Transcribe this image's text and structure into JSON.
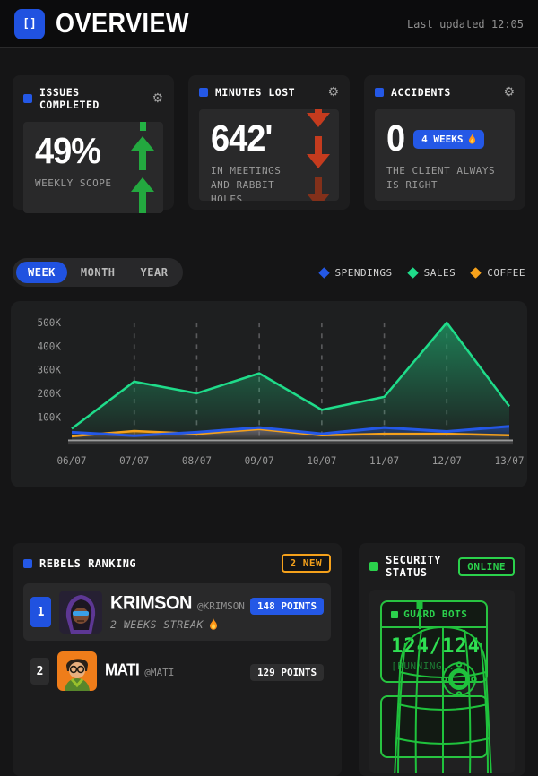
{
  "header": {
    "logo_glyph": "[]",
    "title": "OVERVIEW",
    "last_updated": "Last updated 12:05"
  },
  "stats": [
    {
      "title": "ISSUES COMPLETED",
      "value": "49%",
      "caption": "WEEKLY SCOPE",
      "trend": "up",
      "trend_color": "#23a83f"
    },
    {
      "title": "MINUTES LOST",
      "value": "642'",
      "caption": "IN MEETINGS AND RABBIT HOLES",
      "trend": "down",
      "trend_color": "#c43b1e"
    },
    {
      "title": "ACCIDENTS",
      "value": "0",
      "badge": "4 WEEKS",
      "caption": "THE CLIENT ALWAYS IS RIGHT"
    }
  ],
  "tabs": [
    {
      "label": "WEEK",
      "active": true
    },
    {
      "label": "MONTH",
      "active": false
    },
    {
      "label": "YEAR",
      "active": false
    }
  ],
  "chart_data": {
    "type": "area",
    "title": "",
    "x": [
      "06/07",
      "07/07",
      "08/07",
      "09/07",
      "10/07",
      "11/07",
      "12/07",
      "13/07"
    ],
    "series": [
      {
        "name": "SPENDINGS",
        "color": "#2458e6",
        "values": [
          35000,
          20000,
          35000,
          55000,
          28000,
          55000,
          38000,
          60000
        ]
      },
      {
        "name": "SALES",
        "color": "#1fdc8a",
        "values": [
          50000,
          250000,
          200000,
          285000,
          130000,
          185000,
          500000,
          145000
        ]
      },
      {
        "name": "COFFEE",
        "color": "#f5a11b",
        "values": [
          18000,
          40000,
          28000,
          48000,
          22000,
          28000,
          28000,
          22000
        ]
      }
    ],
    "ylim": [
      0,
      500000
    ],
    "y_ticks": [
      100000,
      200000,
      300000,
      400000,
      500000
    ],
    "grid_lines_at_indices": [
      1,
      2,
      3,
      4,
      5,
      6
    ],
    "grid": "vertical-dashed",
    "legend_position": "top-right"
  },
  "ranking": {
    "title": "REBELS RANKING",
    "badge": "2 NEW",
    "rows": [
      {
        "rank": "1",
        "name": "KRIMSON",
        "handle": "@KRIMSON",
        "points": "148 POINTS",
        "streak": "2 WEEKS STREAK"
      },
      {
        "rank": "2",
        "name": "MATI",
        "handle": "@MATI",
        "points": "129 POINTS"
      }
    ]
  },
  "security": {
    "title": "SECURITY STATUS",
    "badge": "ONLINE",
    "guard_bots": {
      "title": "GUARD BOTS",
      "value": "124/124",
      "status": "[RUNNING...]"
    }
  },
  "colors": {
    "accent_blue": "#2458e6",
    "accent_green": "#2bd14c",
    "chart_green": "#1fdc8a",
    "accent_orange": "#f5a11b",
    "alert_red": "#c43b1e",
    "trend_green": "#23a83f"
  }
}
